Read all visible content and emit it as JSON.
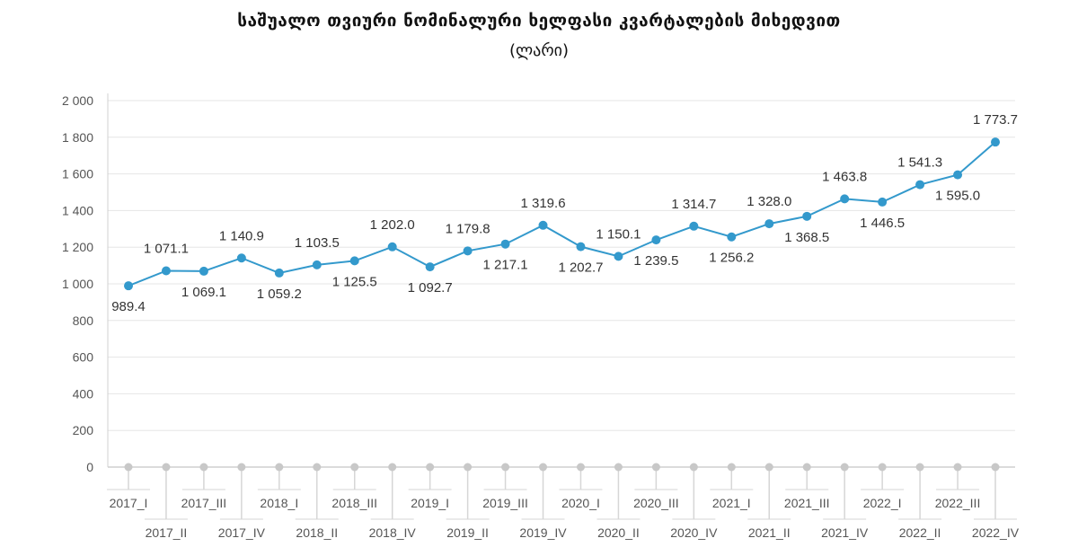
{
  "chart_data": {
    "type": "line",
    "title": "საშუალო თვიური ნომინალური ხელფასი კვარტალების მიხედვით",
    "subtitle": "(ლარი)",
    "xlabel": "",
    "ylabel": "",
    "ylim": [
      0,
      2000
    ],
    "yticks": [
      0,
      200,
      400,
      600,
      800,
      1000,
      1200,
      1400,
      1600,
      1800,
      2000
    ],
    "ytick_labels": [
      "0",
      "200",
      "400",
      "600",
      "800",
      "1 000",
      "1 200",
      "1 400",
      "1 600",
      "1 800",
      "2 000"
    ],
    "grid": true,
    "color": "#3399cc",
    "categories": [
      "2017_I",
      "2017_II",
      "2017_III",
      "2017_IV",
      "2018_I",
      "2018_II",
      "2018_III",
      "2018_IV",
      "2019_I",
      "2019_II",
      "2019_III",
      "2019_IV",
      "2020_I",
      "2020_II",
      "2020_III",
      "2020_IV",
      "2021_I",
      "2021_II",
      "2021_III",
      "2021_IV",
      "2022_I",
      "2022_II",
      "2022_III",
      "2022_IV"
    ],
    "series": [
      {
        "name": "საშუალო თვიური ნომინალური ხელფასი",
        "values": [
          989.4,
          1071.1,
          1069.1,
          1140.9,
          1059.2,
          1103.5,
          1125.5,
          1202.0,
          1092.7,
          1179.8,
          1217.1,
          1319.6,
          1202.7,
          1150.1,
          1239.5,
          1314.7,
          1256.2,
          1328.0,
          1368.5,
          1463.8,
          1446.5,
          1541.3,
          1595.0,
          1773.7
        ],
        "labels": [
          "989.4",
          "1 071.1",
          "1 069.1",
          "1 140.9",
          "1 059.2",
          "1 103.5",
          "1 125.5",
          "1 202.0",
          "1 092.7",
          "1 179.8",
          "1 217.1",
          "1 319.6",
          "1 202.7",
          "1 150.1",
          "1 239.5",
          "1 314.7",
          "1 256.2",
          "1 328.0",
          "1 368.5",
          "1 463.8",
          "1 446.5",
          "1 541.3",
          "1 595.0",
          "1 773.7"
        ]
      }
    ]
  }
}
